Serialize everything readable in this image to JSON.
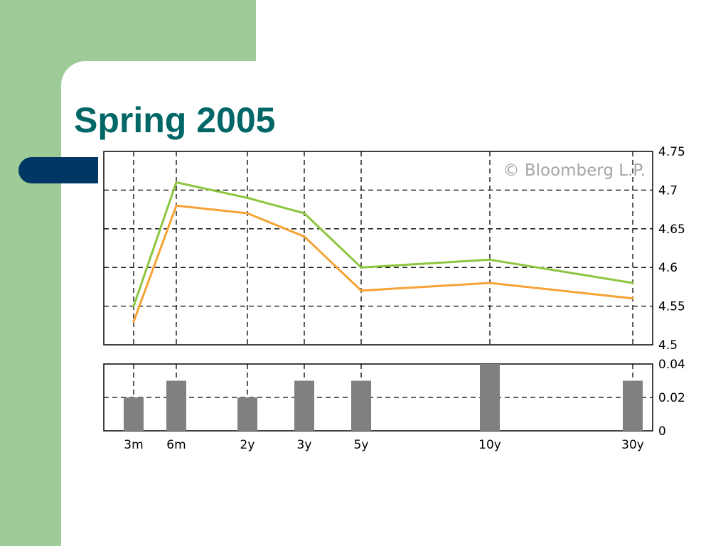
{
  "slide": {
    "title": "Spring 2005"
  },
  "colors": {
    "panel_green": "#9ecc98",
    "accent_blue": "#003764",
    "title_teal": "#006666",
    "series_green": "#8cc63f",
    "series_orange": "#f7a234",
    "bar_gray": "#808080"
  },
  "chart_data": [
    {
      "type": "line",
      "title": "",
      "watermark": "© Bloomberg L.P.",
      "categories": [
        "3m",
        "6m",
        "2y",
        "3y",
        "5y",
        "10y",
        "30y"
      ],
      "series": [
        {
          "values": [
            4.55,
            4.71,
            4.69,
            4.67,
            4.6,
            4.61,
            4.58
          ],
          "color": "#8cc63f"
        },
        {
          "values": [
            4.53,
            4.68,
            4.67,
            4.64,
            4.57,
            4.58,
            4.56
          ],
          "color": "#f7a234"
        }
      ],
      "ylim": [
        4.5,
        4.75
      ],
      "yticks": [
        "4.75",
        "4.7",
        "4.65",
        "4.6",
        "4.55",
        "4.5"
      ],
      "grid": true,
      "y_axis_side": "right"
    },
    {
      "type": "bar",
      "title": "",
      "categories": [
        "3m",
        "6m",
        "2y",
        "3y",
        "5y",
        "10y",
        "30y"
      ],
      "values": [
        0.02,
        0.03,
        0.02,
        0.03,
        0.03,
        0.04,
        0.03
      ],
      "ylim": [
        0,
        0.04
      ],
      "yticks": [
        "0.04",
        "0.02",
        "0"
      ],
      "grid": true,
      "y_axis_side": "right"
    }
  ]
}
